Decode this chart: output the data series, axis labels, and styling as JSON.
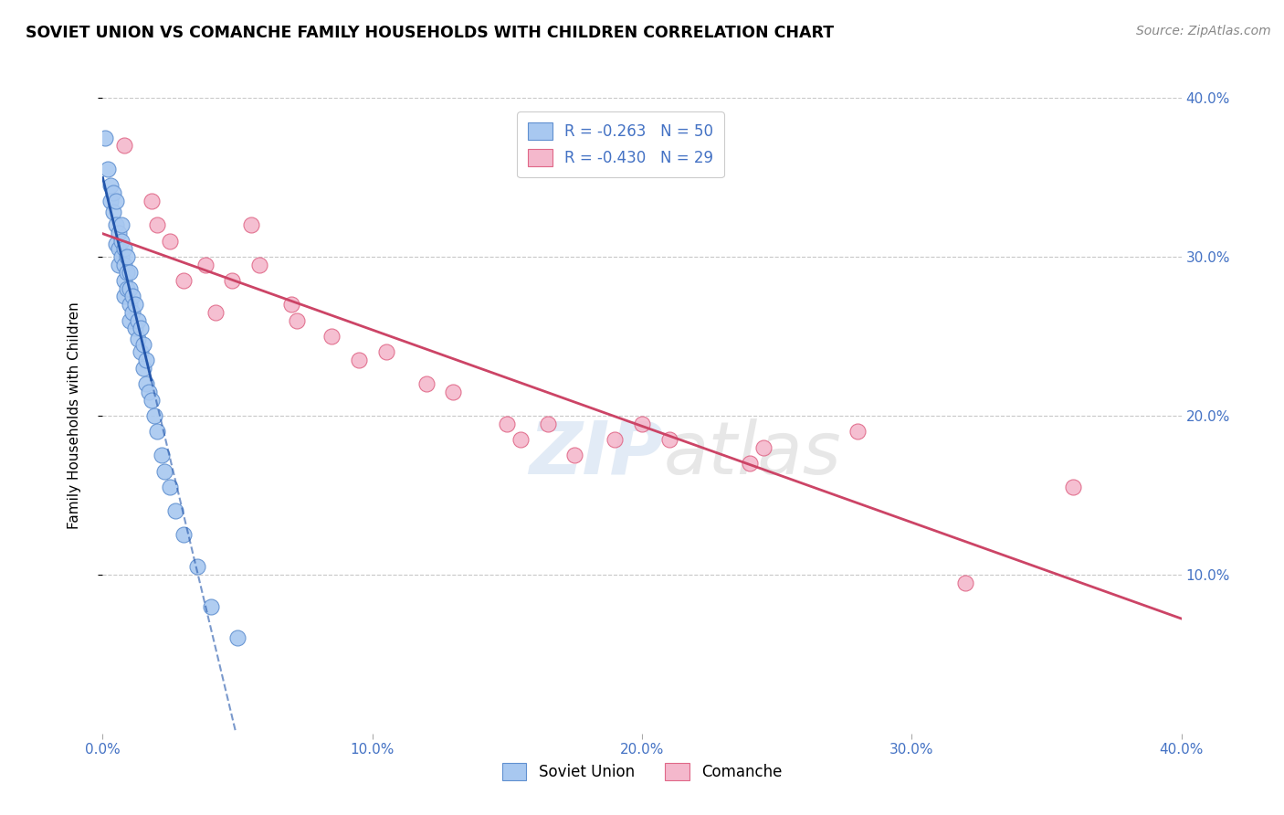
{
  "title": "SOVIET UNION VS COMANCHE FAMILY HOUSEHOLDS WITH CHILDREN CORRELATION CHART",
  "source": "Source: ZipAtlas.com",
  "ylabel": "Family Households with Children",
  "xlabel": "",
  "watermark": "ZIPatlas",
  "xlim": [
    0.0,
    0.4
  ],
  "ylim": [
    0.0,
    0.4
  ],
  "xticks": [
    0.0,
    0.1,
    0.2,
    0.3,
    0.4
  ],
  "yticks": [
    0.1,
    0.2,
    0.3,
    0.4
  ],
  "xtick_labels": [
    "0.0%",
    "10.0%",
    "20.0%",
    "30.0%",
    "40.0%"
  ],
  "ytick_labels": [
    "10.0%",
    "20.0%",
    "30.0%",
    "40.0%"
  ],
  "blue_R": -0.263,
  "blue_N": 50,
  "pink_R": -0.43,
  "pink_N": 29,
  "blue_color": "#a8c8f0",
  "pink_color": "#f4b8cc",
  "blue_edge_color": "#6090d0",
  "pink_edge_color": "#e06888",
  "blue_line_color": "#2255aa",
  "pink_line_color": "#cc4466",
  "label_color": "#4472c4",
  "grid_color": "#c8c8c8",
  "background_color": "#ffffff",
  "blue_x": [
    0.001,
    0.002,
    0.003,
    0.003,
    0.004,
    0.004,
    0.005,
    0.005,
    0.005,
    0.006,
    0.006,
    0.006,
    0.007,
    0.007,
    0.007,
    0.008,
    0.008,
    0.008,
    0.008,
    0.009,
    0.009,
    0.009,
    0.01,
    0.01,
    0.01,
    0.01,
    0.011,
    0.011,
    0.012,
    0.012,
    0.013,
    0.013,
    0.014,
    0.014,
    0.015,
    0.015,
    0.016,
    0.016,
    0.017,
    0.018,
    0.019,
    0.02,
    0.022,
    0.023,
    0.025,
    0.027,
    0.03,
    0.035,
    0.04,
    0.05
  ],
  "blue_y": [
    0.375,
    0.355,
    0.345,
    0.335,
    0.34,
    0.328,
    0.335,
    0.32,
    0.308,
    0.315,
    0.305,
    0.295,
    0.32,
    0.31,
    0.3,
    0.305,
    0.295,
    0.285,
    0.275,
    0.3,
    0.29,
    0.28,
    0.29,
    0.28,
    0.27,
    0.26,
    0.275,
    0.265,
    0.27,
    0.255,
    0.26,
    0.248,
    0.255,
    0.24,
    0.245,
    0.23,
    0.235,
    0.22,
    0.215,
    0.21,
    0.2,
    0.19,
    0.175,
    0.165,
    0.155,
    0.14,
    0.125,
    0.105,
    0.08,
    0.06
  ],
  "pink_x": [
    0.008,
    0.018,
    0.02,
    0.025,
    0.03,
    0.038,
    0.042,
    0.048,
    0.055,
    0.058,
    0.07,
    0.072,
    0.085,
    0.095,
    0.105,
    0.12,
    0.13,
    0.15,
    0.155,
    0.165,
    0.175,
    0.19,
    0.2,
    0.21,
    0.24,
    0.245,
    0.28,
    0.32,
    0.36
  ],
  "pink_y": [
    0.37,
    0.335,
    0.32,
    0.31,
    0.285,
    0.295,
    0.265,
    0.285,
    0.32,
    0.295,
    0.27,
    0.26,
    0.25,
    0.235,
    0.24,
    0.22,
    0.215,
    0.195,
    0.185,
    0.195,
    0.175,
    0.185,
    0.195,
    0.185,
    0.17,
    0.18,
    0.19,
    0.095,
    0.155
  ]
}
